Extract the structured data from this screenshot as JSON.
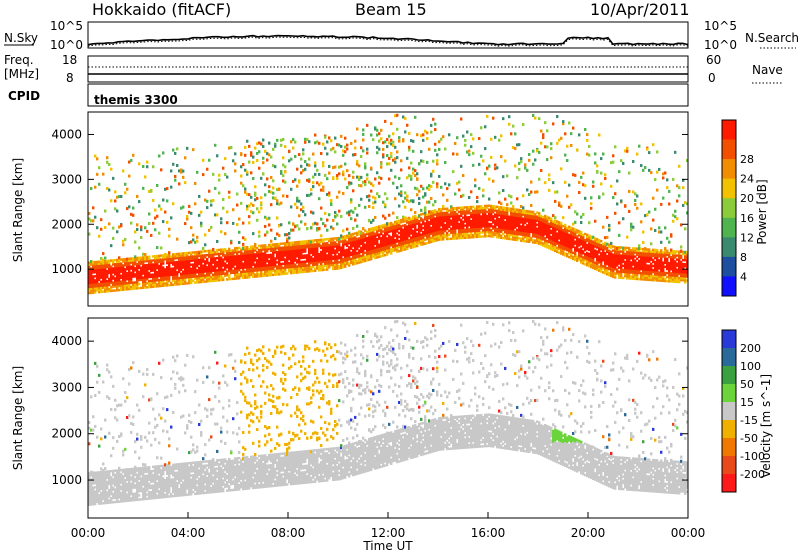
{
  "header": {
    "station": "Hokkaido (fitACF)",
    "beam": "Beam 15",
    "date": "10/Apr/2011"
  },
  "strip_labels": {
    "nsky": "N.Sky",
    "nsearch": "N.Search",
    "freq_line1": "Freq.",
    "freq_line2": "[MHz]",
    "nave": "Nave",
    "cpid": "CPID",
    "cpid_value": "themis 3300"
  },
  "noise_panel": {
    "left_ticks": [
      "10^5",
      "10^0"
    ],
    "right_ticks": [
      "10^5",
      "10^0"
    ]
  },
  "freq_panel": {
    "left_ticks": [
      "18",
      "8"
    ],
    "right_ticks": [
      "60",
      "0"
    ]
  },
  "colors": {
    "power_scale": [
      "#1010ff",
      "#1e4ea0",
      "#3a8a70",
      "#4fb34f",
      "#8ccc3a",
      "#f2c200",
      "#f28c00",
      "#f25000",
      "#ff1a00"
    ],
    "velocity_scale": [
      "#2a3ad8",
      "#2a6a9a",
      "#3aa040",
      "#6ad43a",
      "#c8c8c8",
      "#f0b000",
      "#f07800",
      "#e84a1a",
      "#ff1a1a"
    ]
  },
  "chart_data": [
    {
      "type": "heatmap",
      "title": "",
      "xlabel": "",
      "ylabel": "Slant Range [km]",
      "xlim": [
        0,
        24
      ],
      "ylim": [
        180,
        4500
      ],
      "yticks": [
        "1000",
        "2000",
        "3000",
        "4000"
      ],
      "colorbar": {
        "label": "Power [dB]",
        "ticks": [
          "4",
          "8",
          "12",
          "16",
          "20",
          "24",
          "28"
        ]
      }
    },
    {
      "type": "heatmap",
      "title": "",
      "xlabel": "Time UT",
      "ylabel": "Slant Range [km]",
      "xlim": [
        0,
        24
      ],
      "ylim": [
        180,
        4500
      ],
      "xticks": [
        "00:00",
        "04:00",
        "08:00",
        "12:00",
        "16:00",
        "20:00",
        "00:00"
      ],
      "yticks": [
        "1000",
        "2000",
        "3000",
        "4000"
      ],
      "colorbar": {
        "label": "Velocity [m s^-1]",
        "ticks": [
          "200",
          "100",
          "50",
          "15",
          "-15",
          "-50",
          "-100",
          "-200"
        ]
      }
    }
  ]
}
